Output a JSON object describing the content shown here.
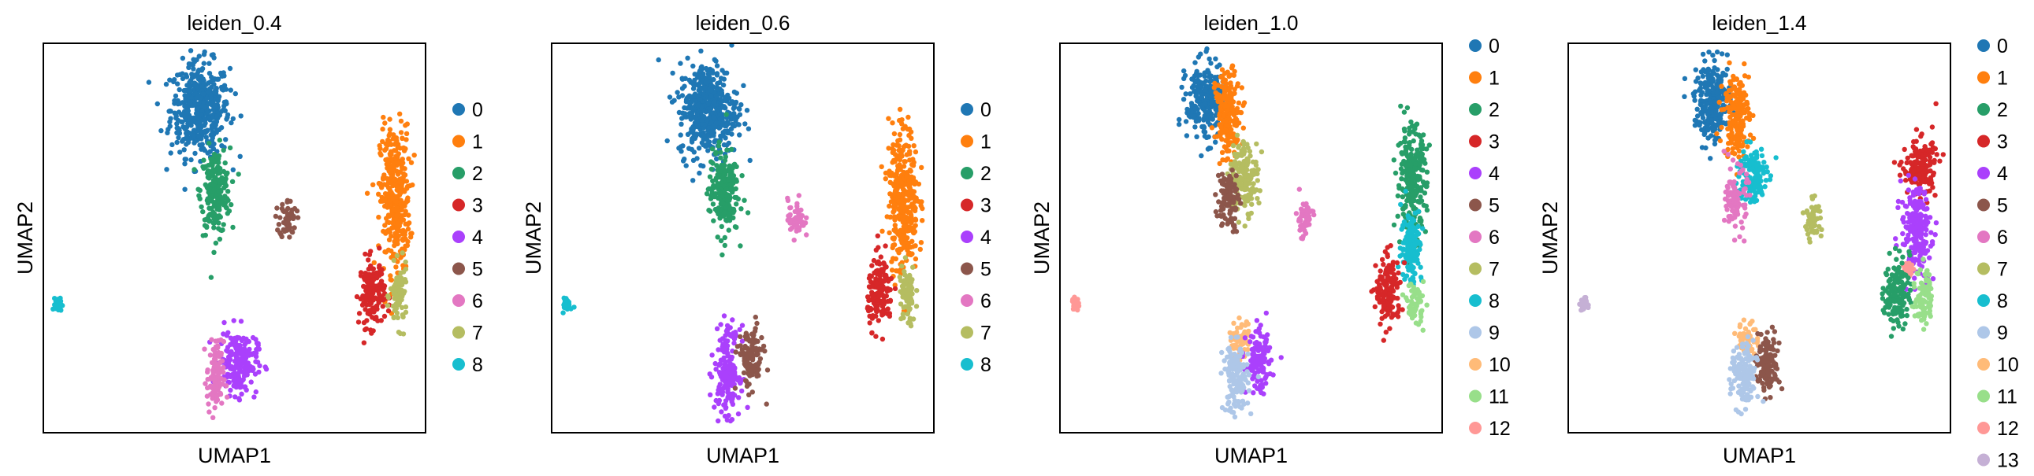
{
  "figure": {
    "xlabel": "UMAP1",
    "ylabel": "UMAP2",
    "palette": {
      "0": "#1f77b4",
      "1": "#ff7f0e",
      "2": "#279e68",
      "3": "#d62728",
      "4": "#aa40fc",
      "5": "#8c564b",
      "6": "#e377c2",
      "7": "#b5bd61",
      "8": "#17becf",
      "9": "#aec7e8",
      "10": "#ffbb78",
      "11": "#98df8a",
      "12": "#ff9896",
      "13": "#c5b0d5"
    }
  },
  "chart_data": [
    {
      "type": "scatter",
      "title": "leiden_0.4",
      "xlabel": "UMAP1",
      "ylabel": "UMAP2",
      "ticks": "none",
      "legend_position": "right",
      "legend": [
        "0",
        "1",
        "2",
        "3",
        "4",
        "5",
        "6",
        "7",
        "8"
      ],
      "clusters": [
        {
          "label": "0",
          "blobs": [
            [
              0.41,
              0.83,
              0.07,
              0.11
            ]
          ]
        },
        {
          "label": "2",
          "blobs": [
            [
              0.45,
              0.62,
              0.035,
              0.1
            ]
          ]
        },
        {
          "label": "5",
          "blobs": [
            [
              0.64,
              0.55,
              0.02,
              0.045
            ]
          ]
        },
        {
          "label": "1",
          "blobs": [
            [
              0.92,
              0.6,
              0.035,
              0.17
            ]
          ]
        },
        {
          "label": "3",
          "blobs": [
            [
              0.86,
              0.36,
              0.03,
              0.08
            ]
          ]
        },
        {
          "label": "7",
          "blobs": [
            [
              0.93,
              0.35,
              0.02,
              0.07
            ]
          ]
        },
        {
          "label": "4",
          "blobs": [
            [
              0.51,
              0.18,
              0.045,
              0.075
            ]
          ]
        },
        {
          "label": "6",
          "blobs": [
            [
              0.45,
              0.14,
              0.02,
              0.085
            ]
          ]
        },
        {
          "label": "8",
          "blobs": [
            [
              0.04,
              0.33,
              0.008,
              0.015
            ]
          ]
        }
      ]
    },
    {
      "type": "scatter",
      "title": "leiden_0.6",
      "xlabel": "UMAP1",
      "ylabel": "UMAP2",
      "ticks": "none",
      "legend_position": "right",
      "legend": [
        "0",
        "1",
        "2",
        "3",
        "4",
        "5",
        "6",
        "7",
        "8"
      ],
      "clusters": [
        {
          "label": "0",
          "blobs": [
            [
              0.41,
              0.83,
              0.07,
              0.11
            ]
          ]
        },
        {
          "label": "2",
          "blobs": [
            [
              0.45,
              0.62,
              0.035,
              0.1
            ]
          ]
        },
        {
          "label": "6",
          "blobs": [
            [
              0.64,
              0.55,
              0.02,
              0.045
            ]
          ]
        },
        {
          "label": "1",
          "blobs": [
            [
              0.92,
              0.6,
              0.035,
              0.17
            ]
          ]
        },
        {
          "label": "3",
          "blobs": [
            [
              0.86,
              0.36,
              0.03,
              0.08
            ]
          ]
        },
        {
          "label": "7",
          "blobs": [
            [
              0.93,
              0.35,
              0.02,
              0.07
            ]
          ]
        },
        {
          "label": "4",
          "blobs": [
            [
              0.46,
              0.16,
              0.03,
              0.1
            ]
          ]
        },
        {
          "label": "5",
          "blobs": [
            [
              0.52,
              0.19,
              0.03,
              0.07
            ]
          ]
        },
        {
          "label": "8",
          "blobs": [
            [
              0.04,
              0.33,
              0.008,
              0.015
            ]
          ]
        }
      ]
    },
    {
      "type": "scatter",
      "title": "leiden_1.0",
      "xlabel": "UMAP1",
      "ylabel": "UMAP2",
      "ticks": "none",
      "legend_position": "right",
      "legend": [
        "0",
        "1",
        "2",
        "3",
        "4",
        "5",
        "6",
        "7",
        "8",
        "9",
        "10",
        "11",
        "12"
      ],
      "clusters": [
        {
          "label": "0",
          "blobs": [
            [
              0.38,
              0.85,
              0.045,
              0.09
            ]
          ]
        },
        {
          "label": "1",
          "blobs": [
            [
              0.44,
              0.82,
              0.03,
              0.1
            ]
          ]
        },
        {
          "label": "7",
          "blobs": [
            [
              0.48,
              0.66,
              0.035,
              0.08
            ]
          ]
        },
        {
          "label": "5",
          "blobs": [
            [
              0.44,
              0.6,
              0.025,
              0.07
            ]
          ]
        },
        {
          "label": "6",
          "blobs": [
            [
              0.64,
              0.55,
              0.02,
              0.045
            ]
          ]
        },
        {
          "label": "2",
          "blobs": [
            [
              0.92,
              0.65,
              0.035,
              0.12
            ]
          ]
        },
        {
          "label": "8",
          "blobs": [
            [
              0.92,
              0.48,
              0.025,
              0.09
            ]
          ]
        },
        {
          "label": "3",
          "blobs": [
            [
              0.86,
              0.36,
              0.03,
              0.08
            ]
          ]
        },
        {
          "label": "11",
          "blobs": [
            [
              0.93,
              0.33,
              0.02,
              0.05
            ]
          ]
        },
        {
          "label": "10",
          "blobs": [
            [
              0.47,
              0.24,
              0.025,
              0.04
            ]
          ]
        },
        {
          "label": "4",
          "blobs": [
            [
              0.52,
              0.18,
              0.03,
              0.07
            ]
          ]
        },
        {
          "label": "9",
          "blobs": [
            [
              0.46,
              0.14,
              0.03,
              0.08
            ]
          ]
        },
        {
          "label": "12",
          "blobs": [
            [
              0.04,
              0.33,
              0.008,
              0.015
            ]
          ]
        }
      ]
    },
    {
      "type": "scatter",
      "title": "leiden_1.4",
      "xlabel": "UMAP1",
      "ylabel": "UMAP2",
      "ticks": "none",
      "legend_position": "right",
      "legend": [
        "0",
        "1",
        "2",
        "3",
        "4",
        "5",
        "6",
        "7",
        "8",
        "9",
        "10",
        "11",
        "12",
        "13"
      ],
      "clusters": [
        {
          "label": "0",
          "blobs": [
            [
              0.38,
              0.85,
              0.045,
              0.09
            ]
          ]
        },
        {
          "label": "1",
          "blobs": [
            [
              0.44,
              0.82,
              0.03,
              0.1
            ]
          ]
        },
        {
          "label": "8",
          "blobs": [
            [
              0.48,
              0.66,
              0.035,
              0.07
            ]
          ]
        },
        {
          "label": "6",
          "blobs": [
            [
              0.44,
              0.6,
              0.025,
              0.07
            ]
          ]
        },
        {
          "label": "7",
          "blobs": [
            [
              0.64,
              0.55,
              0.02,
              0.045
            ]
          ]
        },
        {
          "label": "3",
          "blobs": [
            [
              0.92,
              0.68,
              0.04,
              0.07
            ]
          ]
        },
        {
          "label": "4",
          "blobs": [
            [
              0.91,
              0.52,
              0.035,
              0.1
            ]
          ]
        },
        {
          "label": "12",
          "blobs": [
            [
              0.89,
              0.42,
              0.01,
              0.015
            ]
          ]
        },
        {
          "label": "2",
          "blobs": [
            [
              0.86,
              0.36,
              0.03,
              0.08
            ]
          ]
        },
        {
          "label": "11",
          "blobs": [
            [
              0.93,
              0.35,
              0.02,
              0.07
            ]
          ]
        },
        {
          "label": "10",
          "blobs": [
            [
              0.47,
              0.24,
              0.025,
              0.04
            ]
          ]
        },
        {
          "label": "5",
          "blobs": [
            [
              0.52,
              0.18,
              0.03,
              0.07
            ]
          ]
        },
        {
          "label": "9",
          "blobs": [
            [
              0.46,
              0.14,
              0.03,
              0.08
            ]
          ]
        },
        {
          "label": "13",
          "blobs": [
            [
              0.04,
              0.33,
              0.008,
              0.015
            ]
          ]
        }
      ]
    }
  ]
}
